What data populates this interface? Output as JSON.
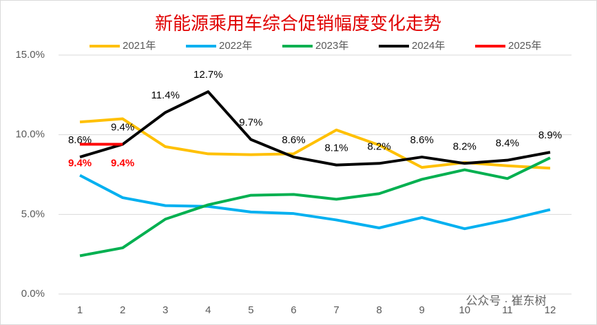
{
  "chart_data": {
    "type": "line",
    "title": "新能源乘用车综合促销幅度变化走势",
    "categories": [
      "1",
      "2",
      "3",
      "4",
      "5",
      "6",
      "7",
      "8",
      "9",
      "10",
      "11",
      "12"
    ],
    "series": [
      {
        "name": "2021年",
        "color": "#ffc000",
        "values": [
          10.8,
          11.0,
          9.25,
          8.8,
          8.75,
          8.8,
          10.3,
          9.35,
          7.95,
          8.25,
          8.05,
          7.9
        ]
      },
      {
        "name": "2022年",
        "color": "#00b0f0",
        "values": [
          7.45,
          6.05,
          5.55,
          5.5,
          5.15,
          5.05,
          4.65,
          4.15,
          4.8,
          4.1,
          4.65,
          5.3
        ]
      },
      {
        "name": "2023年",
        "color": "#00b050",
        "values": [
          2.4,
          2.9,
          4.7,
          5.6,
          6.2,
          6.25,
          5.95,
          6.3,
          7.2,
          7.8,
          7.25,
          8.55
        ]
      },
      {
        "name": "2024年",
        "color": "#000000",
        "values": [
          8.6,
          9.4,
          11.4,
          12.7,
          9.7,
          8.6,
          8.1,
          8.2,
          8.6,
          8.2,
          8.4,
          8.9
        ],
        "value_labels": [
          "8.6%",
          "9.4%",
          "11.4%",
          "12.7%",
          "9.7%",
          "8.6%",
          "8.1%",
          "8.2%",
          "8.6%",
          "8.2%",
          "8.4%",
          "8.9%"
        ]
      },
      {
        "name": "2025年",
        "color": "#ff0000",
        "values": [
          9.4,
          9.4,
          null,
          null,
          null,
          null,
          null,
          null,
          null,
          null,
          null,
          null
        ],
        "value_labels": [
          "9.4%",
          "9.4%",
          null,
          null,
          null,
          null,
          null,
          null,
          null,
          null,
          null,
          null
        ]
      }
    ],
    "ylim": [
      0,
      15
    ],
    "yticks": [
      {
        "value": 0,
        "label": "0.0%"
      },
      {
        "value": 5,
        "label": "5.0%"
      },
      {
        "value": 10,
        "label": "10.0%"
      },
      {
        "value": 15,
        "label": "15.0%"
      }
    ],
    "grid": true,
    "legend": "top",
    "watermark": "公众号 · 崔东树"
  }
}
